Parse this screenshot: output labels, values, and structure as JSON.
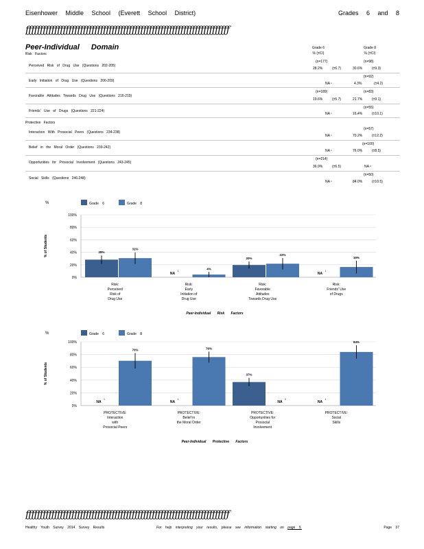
{
  "header": {
    "left": "Eisenhower Middle School (Everett School District)",
    "right": "Grades 6 and 8",
    "rule": "ƒƒƒƒƒƒƒƒƒƒƒƒƒƒƒƒƒƒƒƒƒƒƒƒƒƒƒƒƒƒƒƒƒƒƒƒƒƒƒƒƒƒƒƒƒƒƒƒƒƒƒƒƒƒƒƒƒƒƒƒƒƒƒƒƒƒƒƒƒƒƒ"
  },
  "domain_title": "Peer-Individual Domain",
  "columns": {
    "g6_label": "Grade 6",
    "g6_sub": "% (±CI)",
    "g8_label": "Grade 8",
    "g8_sub": "% (±CI)"
  },
  "risk_heading": "Risk Factors",
  "protective_heading": "Protective Factors",
  "rows": [
    {
      "label": "Perceived Risk of Drug Use (Questions 202-205)",
      "g6_n": "(n=177)",
      "g6_val": "28.2%",
      "g6_ci": "(±6.7)",
      "g6_sup": "",
      "g8_n": "(n=98)",
      "g8_val": "30.6%",
      "g8_ci": "(±9.3)",
      "g8_sup": ""
    },
    {
      "label": "Early Initiation of Drug Use (Questions 206-209)",
      "g6_n": "",
      "g6_val": "NA",
      "g6_ci": "",
      "g6_sup": "1",
      "g8_n": "(n=92)",
      "g8_val": "4.3%",
      "g8_ci": "(±4.2)",
      "g8_sup": ""
    },
    {
      "label": "Favorable Attitudes Towards Drug Use (Questions 216-219)",
      "g6_n": "(n=189)",
      "g6_val": "19.6%",
      "g6_ci": "(±5.7)",
      "g6_sup": "",
      "g8_n": "(n=83)",
      "g8_val": "21.7%",
      "g8_ci": "(±9.1)",
      "g8_sup": ""
    },
    {
      "label": "Friends' Use of Drugs (Questions 221-224)",
      "g6_n": "",
      "g6_val": "NA",
      "g6_ci": "",
      "g6_sup": "1",
      "g8_n": "(n=55)",
      "g8_val": "16.4%",
      "g8_ci": "(±10.1)",
      "g8_sup": ""
    },
    {
      "label": "Interaction With Prosocial Peers (Questions 234-238)",
      "g6_n": "",
      "g6_val": "NA",
      "g6_ci": "",
      "g6_sup": "1",
      "g8_n": "(n=57)",
      "g8_val": "70.2%",
      "g8_ci": "(±12.2)",
      "g8_sup": ""
    },
    {
      "label": "Belief in the Moral Order (Questions 239-242)",
      "g6_n": "",
      "g6_val": "NA",
      "g6_ci": "",
      "g6_sup": "1",
      "g8_n": "(n=100)",
      "g8_val": "76.0%",
      "g8_ci": "(±8.5)",
      "g8_sup": ""
    },
    {
      "label": "Opportunities for Prosocial Involvement (Questions 243-245)",
      "g6_n": "(n=214)",
      "g6_val": "36.9%",
      "g6_ci": "(±6.5)",
      "g6_sup": "",
      "g8_n": "",
      "g8_val": "NA",
      "g8_ci": "",
      "g8_sup": "2"
    },
    {
      "label": "Social Skills (Questions 246-248)",
      "g6_n": "",
      "g6_val": "NA",
      "g6_ci": "",
      "g6_sup": "1",
      "g8_n": "(n=50)",
      "g8_val": "84.0%",
      "g8_ci": "(±10.5)",
      "g8_sup": ""
    }
  ],
  "chart_data": [
    {
      "type": "bar",
      "ylabel": "% of Students",
      "xlabel": "Peer-Individual Risk Factors",
      "ylim": [
        0,
        100
      ],
      "yticks": [
        "0%",
        "20%",
        "40%",
        "60%",
        "80%",
        "100%"
      ],
      "legend_marker": "%",
      "categories": [
        [
          "Risk:",
          "Perceived",
          "Risk of",
          "Drug Use"
        ],
        [
          "Risk:",
          "Early",
          "Initiation of",
          "Drug Use"
        ],
        [
          "Risk:",
          "Favorable",
          "Attitudes",
          "Towards Drug Use"
        ],
        [
          "Risk:",
          "Friends' Use",
          "of Drugs"
        ]
      ],
      "series": [
        {
          "name": "Grade 6",
          "color": "#3b5f8e",
          "values": [
            28.2,
            null,
            19.6,
            null
          ],
          "ci": [
            6.7,
            null,
            5.7,
            null
          ],
          "labels": [
            "28%",
            "NA",
            "20%",
            "NA"
          ],
          "na_sup": [
            "",
            "1",
            "",
            "1"
          ]
        },
        {
          "name": "Grade 8",
          "color": "#4a78b0",
          "values": [
            30.6,
            4.3,
            21.7,
            16.4
          ],
          "ci": [
            9.3,
            4.2,
            9.1,
            10.1
          ],
          "labels": [
            "31%",
            "4%",
            "22%",
            "16%"
          ],
          "na_sup": [
            "",
            "",
            "",
            ""
          ]
        }
      ]
    },
    {
      "type": "bar",
      "ylabel": "% of Students",
      "xlabel": "Peer-Individual Protective Factors",
      "ylim": [
        0,
        100
      ],
      "yticks": [
        "0%",
        "20%",
        "40%",
        "60%",
        "80%",
        "100%"
      ],
      "legend_marker": "%",
      "categories": [
        [
          "PROTECTIVE:",
          "Interaction",
          "with",
          "Prosocial Peers"
        ],
        [
          "PROTECTIVE:",
          "Belief in",
          "the Moral Order"
        ],
        [
          "PROTECTIVE:",
          "Opportunities for",
          "Prosocial",
          "Involvement"
        ],
        [
          "PROTECTIVE:",
          "Social",
          "Skills"
        ]
      ],
      "series": [
        {
          "name": "Grade 6",
          "color": "#3b5f8e",
          "values": [
            null,
            null,
            36.9,
            null
          ],
          "ci": [
            null,
            null,
            6.5,
            null
          ],
          "labels": [
            "NA",
            "NA",
            "37%",
            "NA"
          ],
          "na_sup": [
            "1",
            "1",
            "",
            "1"
          ]
        },
        {
          "name": "Grade 8",
          "color": "#4a78b0",
          "values": [
            70.2,
            76.0,
            null,
            84.0
          ],
          "ci": [
            12.2,
            8.5,
            null,
            10.5
          ],
          "labels": [
            "70%",
            "76%",
            "NA",
            "84%"
          ],
          "na_sup": [
            "",
            "",
            "2",
            ""
          ]
        }
      ]
    }
  ],
  "footer": {
    "left": "Healthy Youth Survey 2014 Survey Results",
    "middle": "For help interpreting your results, please see information starting on",
    "link": "page 5.",
    "right": "Page 37"
  }
}
